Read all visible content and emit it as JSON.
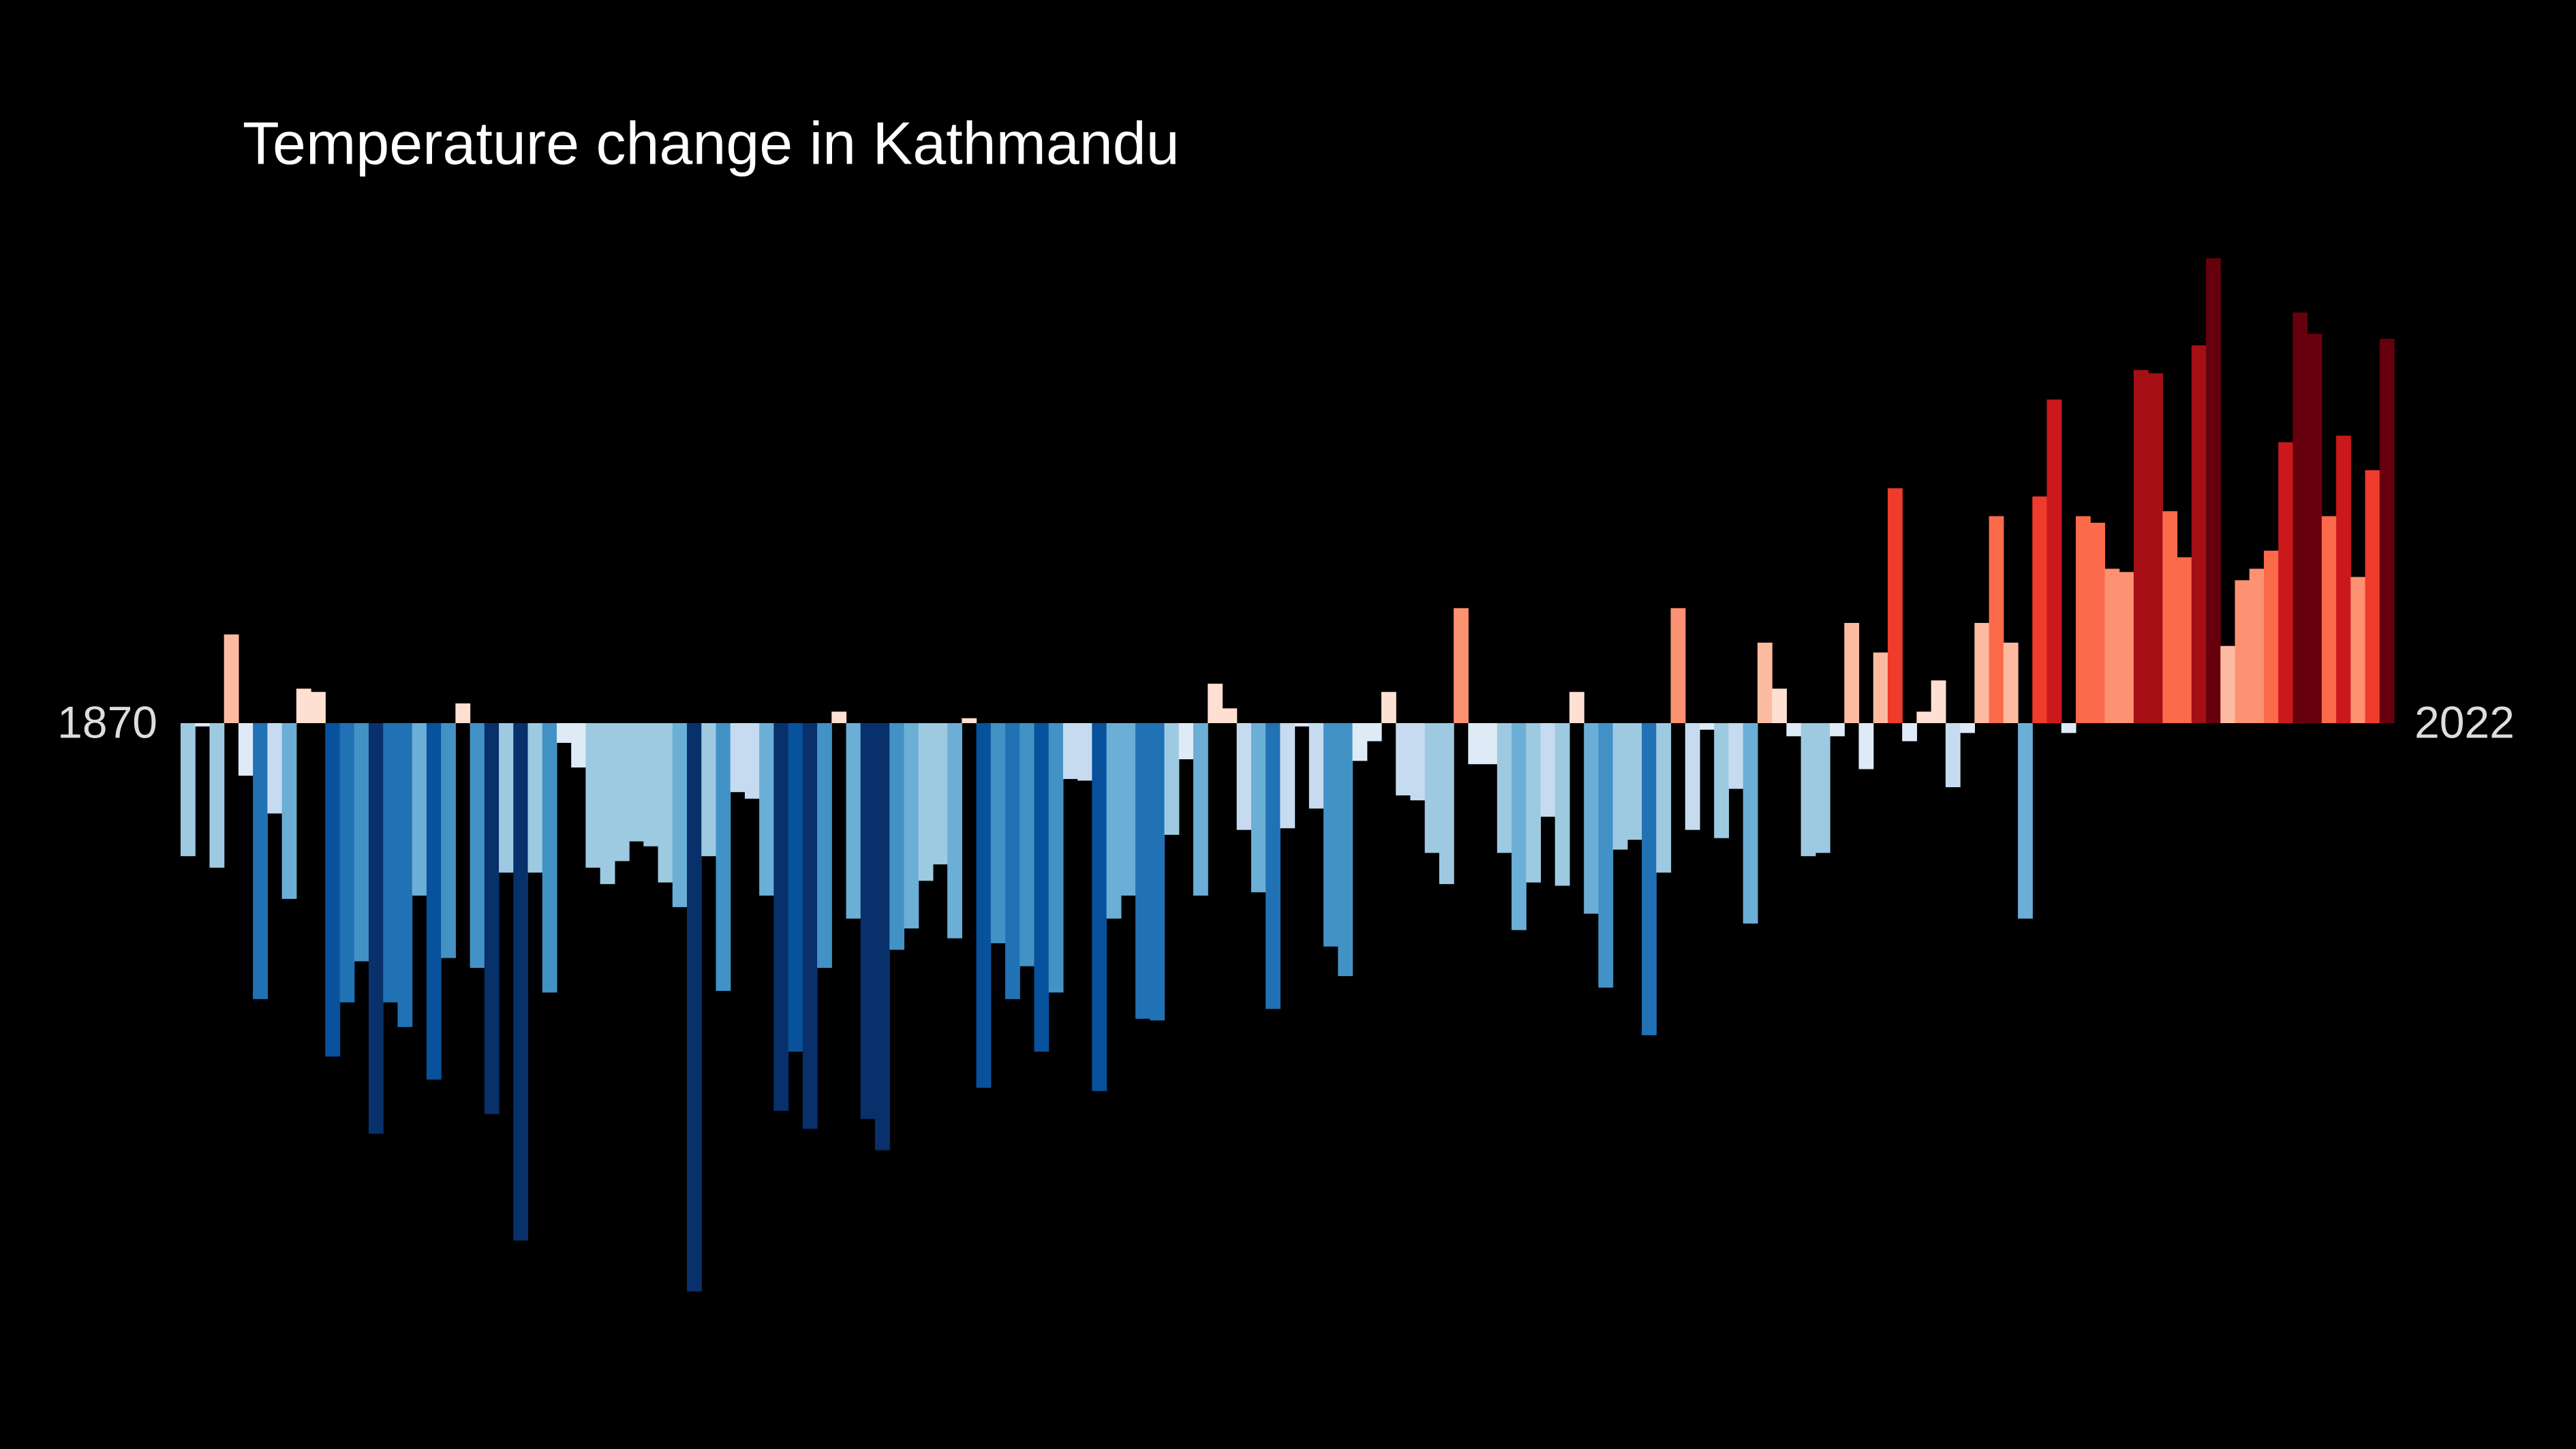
{
  "chart_data": {
    "type": "bar",
    "title": "Temperature change in Kathmandu",
    "categories": [
      "1870",
      null,
      null,
      null,
      null,
      null,
      null,
      null,
      null,
      null,
      null,
      null,
      null,
      null,
      null,
      null,
      null,
      null,
      null,
      null,
      null,
      null,
      null,
      null,
      null,
      null,
      null,
      null,
      null,
      null,
      null,
      null,
      null,
      null,
      null,
      null,
      null,
      null,
      null,
      null,
      null,
      null,
      null,
      null,
      null,
      null,
      null,
      null,
      null,
      null,
      null,
      null,
      null,
      null,
      null,
      null,
      null,
      null,
      null,
      null,
      null,
      null,
      null,
      null,
      null,
      null,
      null,
      null,
      null,
      null,
      null,
      null,
      null,
      null,
      null,
      null,
      null,
      null,
      null,
      null,
      null,
      null,
      null,
      null,
      null,
      null,
      null,
      null,
      null,
      null,
      null,
      null,
      null,
      null,
      null,
      null,
      null,
      null,
      null,
      null,
      null,
      null,
      null,
      null,
      null,
      null,
      null,
      null,
      null,
      null,
      null,
      null,
      null,
      null,
      null,
      null,
      null,
      null,
      null,
      null,
      null,
      null,
      null,
      null,
      null,
      null,
      null,
      null,
      null,
      null,
      null,
      null,
      null,
      null,
      null,
      null,
      null,
      null,
      null,
      null,
      null,
      null,
      null,
      null,
      null,
      null,
      null,
      null,
      null,
      null,
      null,
      null,
      "2022"
    ],
    "values": [
      -0.81,
      -0.02,
      -0.88,
      0.54,
      -0.32,
      -1.68,
      -0.55,
      -1.07,
      0.21,
      0.19,
      -2.03,
      -1.7,
      -1.45,
      -2.5,
      -1.7,
      -1.85,
      -1.05,
      -2.17,
      -1.43,
      0.12,
      -1.49,
      -2.38,
      -0.91,
      -3.15,
      -0.91,
      -1.64,
      -0.12,
      -0.27,
      -0.88,
      -0.98,
      -0.84,
      -0.72,
      -0.75,
      -0.97,
      -1.12,
      -3.46,
      -0.81,
      -1.63,
      -0.42,
      -0.46,
      -1.05,
      -2.36,
      -2.0,
      -2.47,
      -1.49,
      0.07,
      -1.19,
      -2.41,
      -2.6,
      -1.38,
      -1.25,
      -0.96,
      -0.86,
      -1.31,
      0.03,
      -2.22,
      -1.34,
      -1.68,
      -1.48,
      -2.0,
      -1.64,
      -0.34,
      -0.35,
      -2.24,
      -1.19,
      -1.05,
      -1.8,
      -1.81,
      -0.68,
      -0.22,
      -1.05,
      0.24,
      0.09,
      -0.65,
      -1.03,
      -1.74,
      -0.64,
      -0.02,
      -0.52,
      -1.36,
      -1.54,
      -0.23,
      -0.11,
      0.19,
      -0.44,
      -0.47,
      -0.79,
      -0.98,
      0.7,
      -0.25,
      -0.25,
      -0.79,
      -1.26,
      -0.97,
      -0.57,
      -0.99,
      0.19,
      -1.16,
      -1.61,
      -0.77,
      -0.71,
      -1.9,
      -0.91,
      0.7,
      -0.65,
      -0.04,
      -0.7,
      -0.4,
      -1.22,
      0.49,
      0.21,
      -0.08,
      -0.81,
      -0.79,
      -0.08,
      0.61,
      -0.28,
      0.43,
      1.43,
      -0.11,
      0.07,
      0.26,
      -0.39,
      -0.06,
      0.61,
      1.26,
      0.49,
      -1.19,
      1.38,
      1.97,
      -0.06,
      1.26,
      1.22,
      0.94,
      0.92,
      2.15,
      2.13,
      1.29,
      1.01,
      2.3,
      2.83,
      0.47,
      0.87,
      0.94,
      1.05,
      1.71,
      2.5,
      2.37,
      1.26,
      1.75,
      0.89,
      1.54,
      2.34
    ],
    "colormap": [
      "#08306b",
      "#08519c",
      "#2171b5",
      "#4292c6",
      "#6baed6",
      "#9ecae1",
      "#c6dbef",
      "#deebf7",
      "#fee0d2",
      "#fcbba1",
      "#fc9272",
      "#fb6a4a",
      "#ef3b2c",
      "#cb181d",
      "#a50f15",
      "#67000d"
    ]
  }
}
